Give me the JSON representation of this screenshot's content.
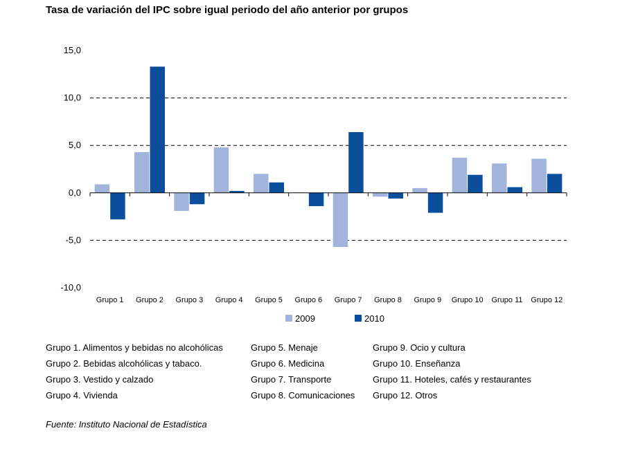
{
  "chart_data": {
    "type": "bar",
    "title": "Tasa de variación del IPC sobre igual periodo del año anterior por grupos",
    "categories": [
      "Grupo 1",
      "Grupo 2",
      "Grupo 3",
      "Grupo 4",
      "Grupo 5",
      "Grupo 6",
      "Grupo 7",
      "Grupo 8",
      "Grupo 9",
      "Grupo 10",
      "Grupo 11",
      "Grupo 12"
    ],
    "series": [
      {
        "name": "2009",
        "color": "#a3b4dc",
        "values": [
          0.9,
          4.3,
          -1.9,
          4.8,
          2.0,
          0.0,
          -5.7,
          -0.4,
          0.5,
          3.7,
          3.1,
          3.6
        ]
      },
      {
        "name": "2010",
        "color": "#0b4f9c",
        "values": [
          -2.8,
          13.3,
          -1.2,
          0.2,
          1.1,
          -1.4,
          6.4,
          -0.6,
          -2.1,
          1.9,
          0.6,
          2.0
        ]
      }
    ],
    "ylim": [
      -10,
      15
    ],
    "yticks": [
      -10,
      -5,
      0,
      5,
      10,
      15
    ],
    "ytick_labels": [
      "-10,0",
      "-5,0",
      "0,0",
      "5,0",
      "10,0",
      "15,0"
    ],
    "xlabel": "",
    "ylabel": "",
    "grid": "dashed horizontal",
    "legend_position": "bottom"
  },
  "descriptions": {
    "col1": [
      "Grupo 1. Alimentos y bebidas no alcohólicas",
      "Grupo 2. Bebidas alcohólicas y  tabaco.",
      "Grupo 3. Vestido y calzado",
      "Grupo 4. Vivienda"
    ],
    "col2": [
      "Grupo 5. Menaje",
      "Grupo 6. Medicina",
      "Grupo 7. Transporte",
      "Grupo 8. Comunicaciones"
    ],
    "col3": [
      "Grupo 9. Ocio y cultura",
      "Grupo 10. Enseñanza",
      "Grupo 11. Hoteles, cafés y restaurantes",
      "Grupo 12. Otros"
    ]
  },
  "source": "Fuente: Instituto Nacional de Estadística"
}
